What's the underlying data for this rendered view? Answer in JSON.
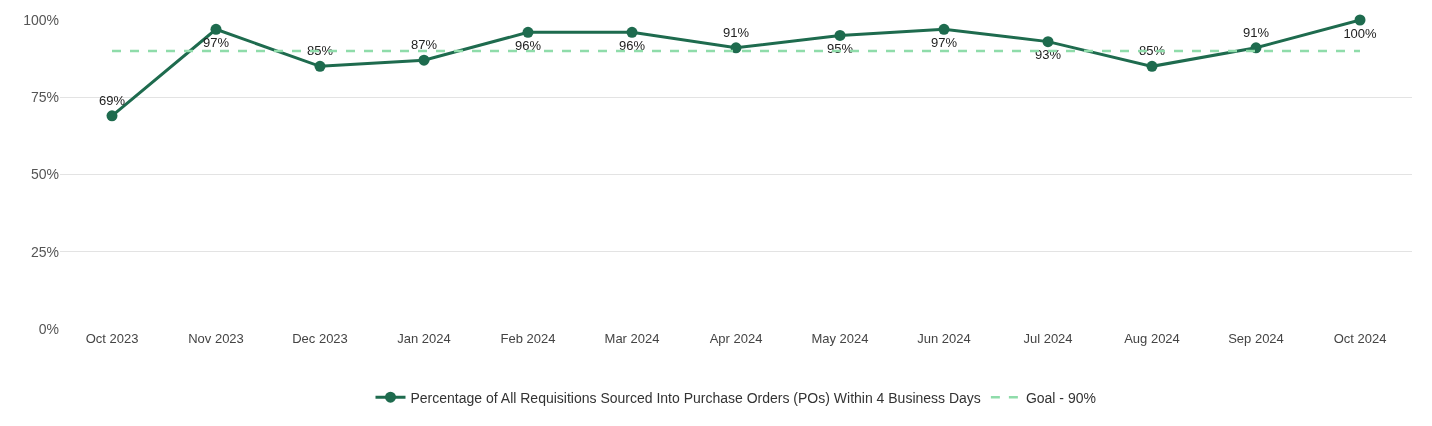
{
  "chart_data": {
    "type": "line",
    "categories": [
      "Oct 2023",
      "Nov 2023",
      "Dec 2023",
      "Jan 2024",
      "Feb 2024",
      "Mar 2024",
      "Apr 2024",
      "May 2024",
      "Jun 2024",
      "Jul 2024",
      "Aug 2024",
      "Sep 2024",
      "Oct 2024"
    ],
    "series": [
      {
        "name": "Percentage of All Requisitions Sourced Into Purchase Orders (POs) Within 4 Business Days",
        "color": "#1e6b4e",
        "marker": "circle",
        "line_style": "solid",
        "values": [
          69,
          97,
          85,
          87,
          96,
          96,
          91,
          95,
          97,
          93,
          85,
          91,
          100
        ],
        "value_labels": [
          "69%",
          "97%",
          "85%",
          "87%",
          "96%",
          "96%",
          "91%",
          "95%",
          "97%",
          "93%",
          "85%",
          "91%",
          "100%"
        ]
      },
      {
        "name": "Goal - 90%",
        "color": "#8fdcaa",
        "marker": "none",
        "line_style": "dashed",
        "values": [
          90,
          90,
          90,
          90,
          90,
          90,
          90,
          90,
          90,
          90,
          90,
          90,
          90
        ]
      }
    ],
    "ylim": [
      0,
      100
    ],
    "yticks": [
      {
        "value": 0,
        "label": "0%"
      },
      {
        "value": 25,
        "label": "25%"
      },
      {
        "value": 50,
        "label": "50%"
      },
      {
        "value": 75,
        "label": "75%"
      },
      {
        "value": 100,
        "label": "100%"
      }
    ],
    "grid": "y",
    "legend": "bottom"
  }
}
